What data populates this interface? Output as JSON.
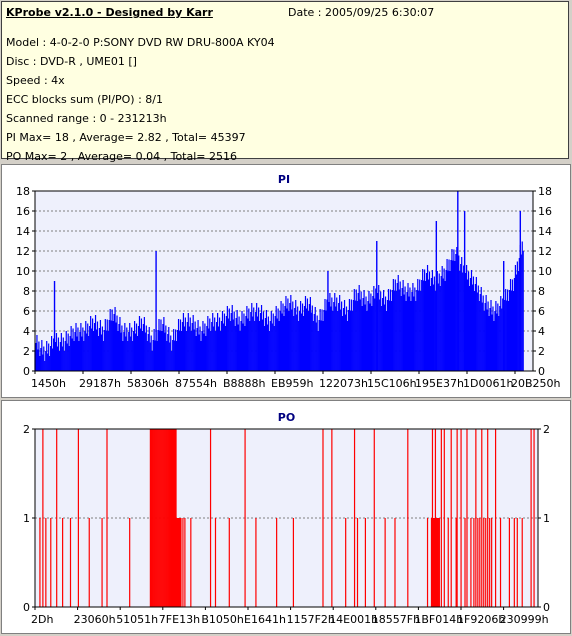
{
  "header": {
    "title": "KProbe v2.1.0 - Designed by Karr",
    "date": "Date : 2005/09/25 6:30:07",
    "lines": [
      "Model : 4-0-2-0 P:SONY    DVD RW DRU-800A  KY04",
      "Disc : DVD-R , UME01 []",
      "Speed : 4x",
      "ECC blocks sum (PI/PO) : 8/1",
      "Scanned range : 0 - 231213h",
      "PI Max= 18 , Average= 2.82 , Total= 45397",
      "PO Max= 2 , Average= 0.04 , Total= 2516"
    ]
  },
  "chart_data": [
    {
      "type": "area",
      "title": "PI",
      "color": "#0000ff",
      "ylim": [
        0,
        18
      ],
      "yticks": [
        0,
        2,
        4,
        6,
        8,
        10,
        12,
        14,
        16,
        18
      ],
      "xtick_labels": [
        "1450h",
        "29187h",
        "58306h",
        "87554h",
        "B8888h",
        "EB959h",
        "122073h",
        "15C106h",
        "195E37h",
        "1D0061h",
        "20B250h"
      ],
      "x": [
        0,
        10,
        20,
        30,
        40,
        50,
        60,
        70,
        80,
        90,
        100,
        110,
        120,
        130,
        140,
        150,
        160,
        170,
        180,
        190,
        200,
        210,
        220,
        230,
        240,
        250,
        260,
        270,
        280,
        290,
        300,
        310,
        320,
        330,
        340,
        350,
        360,
        370,
        380,
        390,
        400,
        410,
        420,
        430,
        440,
        450,
        460,
        470,
        480,
        490,
        500
      ],
      "values": [
        3,
        2,
        3,
        3,
        4,
        4,
        5,
        4,
        6,
        4,
        4,
        5,
        3,
        5,
        3,
        5,
        5,
        4,
        5,
        5,
        6,
        5,
        6,
        6,
        5,
        6,
        7,
        6,
        7,
        5,
        7,
        7,
        6,
        8,
        7,
        8,
        7,
        9,
        8,
        8,
        10,
        9,
        10,
        12,
        10,
        9,
        7,
        6,
        7,
        9,
        13
      ],
      "peaks": [
        {
          "x": 20,
          "value": 9
        },
        {
          "x": 124,
          "value": 12
        },
        {
          "x": 300,
          "value": 10
        },
        {
          "x": 350,
          "value": 13
        },
        {
          "x": 411,
          "value": 15
        },
        {
          "x": 433,
          "value": 18
        },
        {
          "x": 440,
          "value": 16
        },
        {
          "x": 480,
          "value": 11
        },
        {
          "x": 497,
          "value": 16
        }
      ]
    },
    {
      "type": "bar",
      "title": "PO",
      "color": "#ff0000",
      "ylim": [
        0,
        2
      ],
      "yticks": [
        0,
        1,
        2
      ],
      "xtick_labels": [
        "2Dh",
        "23060h",
        "51051h",
        "7FE13h",
        "B1050h",
        "E1641h",
        "1157F2h",
        "14E001h",
        "18557Fh",
        "1BF014h",
        "1F9206h",
        "230999h"
      ],
      "x": [
        5,
        8,
        11,
        16,
        22,
        28,
        36,
        44,
        55,
        68,
        73,
        96,
        117,
        118,
        119,
        120,
        121,
        122,
        123,
        124,
        125,
        126,
        127,
        128,
        129,
        130,
        131,
        132,
        133,
        134,
        135,
        136,
        137,
        138,
        139,
        140,
        141,
        142,
        143,
        144,
        145,
        146,
        147,
        148,
        150,
        152,
        158,
        178,
        183,
        197,
        213,
        224,
        245,
        262,
        292,
        301,
        315,
        324,
        327,
        335,
        344,
        355,
        365,
        378,
        398,
        402,
        403,
        404,
        405,
        406,
        407,
        408,
        409,
        410,
        412,
        415,
        419,
        422,
        427,
        428,
        432,
        436,
        438,
        442,
        445,
        447,
        449,
        451,
        453,
        455,
        457,
        459,
        461,
        463,
        467,
        472,
        481,
        486,
        489,
        494,
        503,
        506
      ],
      "values": [
        1,
        2,
        1,
        1,
        2,
        1,
        1,
        2,
        1,
        1,
        2,
        1,
        2,
        2,
        2,
        2,
        2,
        2,
        2,
        2,
        2,
        2,
        2,
        2,
        2,
        2,
        2,
        2,
        2,
        2,
        2,
        2,
        2,
        2,
        2,
        2,
        2,
        2,
        2,
        1,
        1,
        1,
        1,
        1,
        1,
        1,
        1,
        2,
        1,
        1,
        2,
        1,
        1,
        1,
        2,
        2,
        1,
        2,
        1,
        1,
        2,
        1,
        1,
        2,
        1,
        1,
        2,
        1,
        1,
        2,
        1,
        1,
        1,
        1,
        2,
        2,
        1,
        2,
        1,
        2,
        2,
        1,
        2,
        1,
        1,
        2,
        1,
        1,
        2,
        1,
        1,
        2,
        1,
        1,
        2,
        1,
        1,
        1,
        1,
        1,
        2,
        2
      ]
    }
  ]
}
